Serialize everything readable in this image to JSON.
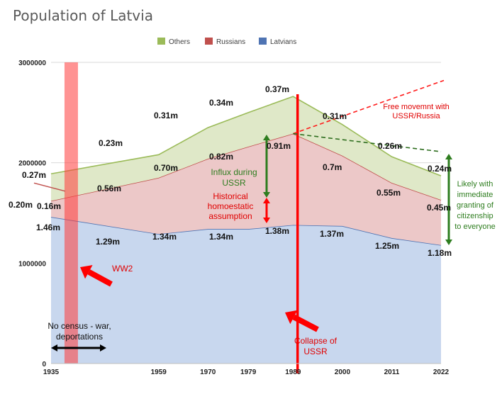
{
  "chart_data": {
    "type": "area",
    "title": "Population of Latvia",
    "stacked": true,
    "x": [
      1935,
      1959,
      1970,
      1979,
      1989,
      2000,
      2011,
      2022
    ],
    "x_tick_labels": [
      "1935",
      "1959",
      "1970",
      "1979",
      "1989",
      "2000",
      "2011",
      "2022"
    ],
    "ylim": [
      0,
      3000000
    ],
    "y_ticks": [
      0,
      1000000,
      2000000,
      3000000
    ],
    "y_tick_labels": [
      "0",
      "1000000",
      "2000000",
      "3000000"
    ],
    "legend": {
      "placement": "top-center"
    },
    "grid": true,
    "colors": {
      "Latvians": "#c8d7ee",
      "Russians": "#ecc8c8",
      "Others": "#dfe8c8",
      "Latvians_line": "#4f74b3",
      "Russians_line": "#c0504d",
      "Others_line": "#9bbb59"
    },
    "series": [
      {
        "name": "Latvians",
        "values": [
          1.46,
          1.29,
          1.34,
          1.34,
          1.38,
          1.37,
          1.25,
          1.18
        ],
        "labels": [
          "1.46m",
          "1.29m",
          "1.34m",
          "1.34m",
          "1.38m",
          "1.37m",
          "1.25m",
          "1.18m"
        ]
      },
      {
        "name": "Russians",
        "values": [
          0.16,
          0.56,
          0.7,
          0.82,
          0.91,
          0.7,
          0.55,
          0.45
        ],
        "labels": [
          "0.16m",
          "0.56m",
          "0.70m",
          "0.82m",
          "0.91m",
          "0.7m",
          "0.55m",
          "0.45m"
        ]
      },
      {
        "name": "Others",
        "values": [
          0.27,
          0.23,
          0.31,
          0.34,
          0.37,
          0.31,
          0.26,
          0.24
        ],
        "labels": [
          "0.27m",
          "0.23m",
          "0.31m",
          "0.34m",
          "0.37m",
          "0.31m",
          "0.26m",
          "0.24m"
        ]
      }
    ],
    "historical_trend_line": {
      "label": "0.20m",
      "from": {
        "x": 1935,
        "y": 1600000
      },
      "to": {
        "x": 1935,
        "y": 1540000
      }
    },
    "projection_lines": {
      "free_movement": {
        "from": {
          "x": 1989,
          "y": 2290000
        },
        "to": {
          "x": 2022,
          "y": 2820000
        }
      },
      "immediate_citizenship": {
        "from": {
          "x": 1989,
          "y": 2290000
        },
        "to": {
          "x": 2022,
          "y": 2110000
        }
      }
    },
    "highlight_band": {
      "from_x": 1938,
      "to_x": 1941
    },
    "collapse_line_x": 1990
  },
  "annotations": {
    "ww2": "WW2",
    "no_census": [
      "No census - war,",
      "deportations"
    ],
    "collapse": [
      "Collapse of",
      "USSR"
    ],
    "free_movement": [
      "Free movemnt with",
      "USSR/Russia"
    ],
    "influx": [
      "Influx during",
      "USSR"
    ],
    "historical": [
      "Historical",
      "homoestatic",
      "assumption"
    ],
    "likely": [
      "Likely with",
      "immediate",
      "granting of",
      "citizenship",
      "to everyone"
    ]
  }
}
